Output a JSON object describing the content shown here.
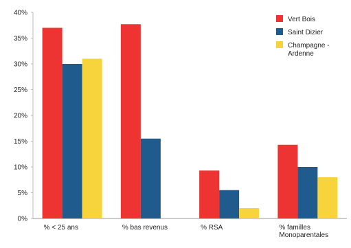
{
  "chart_data": {
    "type": "bar",
    "categories": [
      "% < 25 ans",
      "% bas revenus",
      "% RSA",
      "% familles Monoparentales"
    ],
    "category_lines": [
      [
        "% < 25 ans"
      ],
      [
        "% bas revenus"
      ],
      [
        "% RSA"
      ],
      [
        "% familles",
        "Monoparentales"
      ]
    ],
    "series": [
      {
        "name": "Vert Bois",
        "values": [
          37,
          37.7,
          9.3,
          14.3
        ],
        "color": "#ee3333"
      },
      {
        "name": "Saint Dizier",
        "values": [
          30,
          15.5,
          5.5,
          10
        ],
        "color": "#1f5b8c"
      },
      {
        "name": "Champagne - Ardenne",
        "values": [
          31,
          null,
          2,
          8
        ],
        "color": "#f7d33c"
      }
    ],
    "legend_lines": [
      [
        "Vert Bois"
      ],
      [
        "Saint Dizier"
      ],
      [
        "Champagne -",
        "Ardenne"
      ]
    ],
    "y_ticks": [
      "0%",
      "5%",
      "10%",
      "15%",
      "20%",
      "25%",
      "30%",
      "35%",
      "40%"
    ],
    "ylim": [
      0,
      40
    ],
    "grid": false,
    "legend_position": "top-right",
    "title": "",
    "xlabel": "",
    "ylabel": ""
  }
}
